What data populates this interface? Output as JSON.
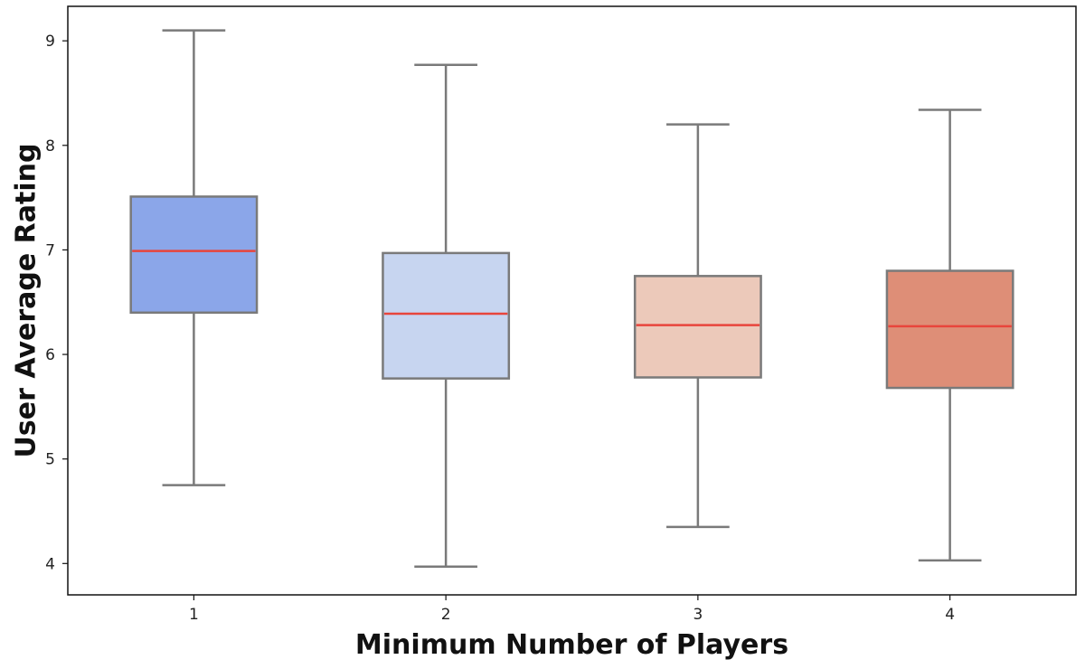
{
  "chart_data": {
    "type": "box",
    "title": "",
    "xlabel": "Minimum Number of Players",
    "ylabel": "User Average Rating",
    "categories": [
      "1",
      "2",
      "3",
      "4"
    ],
    "ylim": [
      3.7,
      9.33
    ],
    "yticks": [
      4,
      5,
      6,
      7,
      8,
      9
    ],
    "boxes": [
      {
        "category": "1",
        "whislo": 4.75,
        "q1": 6.4,
        "median": 6.99,
        "q3": 7.51,
        "whishi": 9.1,
        "color": "#8ba6e9"
      },
      {
        "category": "2",
        "whislo": 3.97,
        "q1": 5.77,
        "median": 6.39,
        "q3": 6.97,
        "whishi": 8.77,
        "color": "#c7d5f0"
      },
      {
        "category": "3",
        "whislo": 4.35,
        "q1": 5.78,
        "median": 6.28,
        "q3": 6.75,
        "whishi": 8.2,
        "color": "#ecc9ba"
      },
      {
        "category": "4",
        "whislo": 4.03,
        "q1": 5.68,
        "median": 6.27,
        "q3": 6.8,
        "whishi": 8.34,
        "color": "#de8e77"
      }
    ],
    "colors": {
      "box_edge": "#7a7a7a",
      "median_line": "#e8453c",
      "axis": "#111111",
      "background": "#ffffff"
    },
    "grid": false,
    "legend": "none"
  }
}
